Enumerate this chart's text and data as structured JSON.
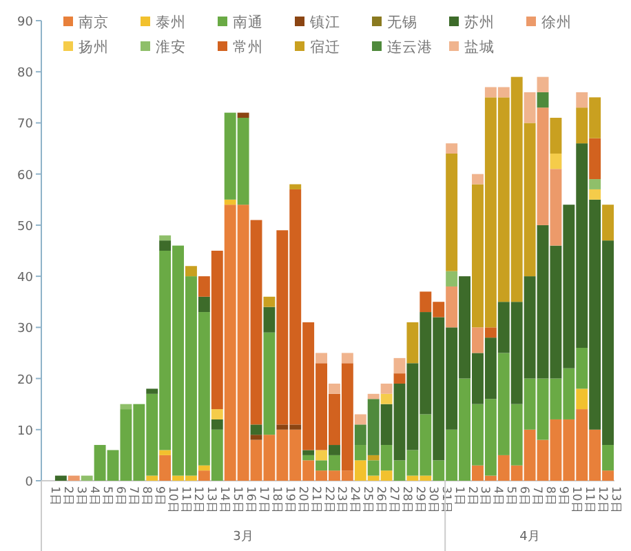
{
  "chart_data": {
    "type": "bar",
    "stacked": true,
    "legend": "top",
    "categories": [
      "1日",
      "2日",
      "3日",
      "4日",
      "5日",
      "6日",
      "7日",
      "8日",
      "9日",
      "10日",
      "11日",
      "12日",
      "13日",
      "14日",
      "15日",
      "16日",
      "17日",
      "18日",
      "19日",
      "20日",
      "21日",
      "22日",
      "23日",
      "24日",
      "25日",
      "26日",
      "27日",
      "28日",
      "29日",
      "30日",
      "31日",
      "1日",
      "2日",
      "3日",
      "4日",
      "5日",
      "6日",
      "7日",
      "8日",
      "9日",
      "10日",
      "11日",
      "12日",
      "13日"
    ],
    "annotations": [
      "3月",
      "4月"
    ],
    "ylim": [
      0,
      90
    ],
    "yticks": [
      0,
      10,
      20,
      30,
      40,
      50,
      60,
      70,
      80,
      90
    ],
    "series": [
      {
        "name": "南京",
        "color": "#e8803a",
        "values": [
          0,
          0,
          0,
          0,
          0,
          0,
          0,
          0,
          0,
          5,
          0,
          0,
          2,
          0,
          54,
          54,
          8,
          9,
          10,
          10,
          4,
          2,
          2,
          2,
          0,
          0,
          0,
          0,
          0,
          0,
          0,
          0,
          0,
          3,
          1,
          5,
          3,
          10,
          8,
          12,
          12,
          14,
          10,
          2
        ]
      },
      {
        "name": "泰州",
        "color": "#f2c12e",
        "values": [
          0,
          0,
          0,
          0,
          0,
          0,
          0,
          0,
          1,
          1,
          1,
          1,
          1,
          0,
          1,
          0,
          0,
          0,
          0,
          0,
          0,
          0,
          0,
          0,
          4,
          1,
          2,
          0,
          1,
          1,
          0,
          0,
          0,
          0,
          0,
          0,
          0,
          0,
          0,
          0,
          0,
          4,
          0,
          0
        ]
      },
      {
        "name": "南通",
        "color": "#6aaa45",
        "values": [
          0,
          0,
          0,
          0,
          7,
          6,
          14,
          15,
          16,
          39,
          45,
          39,
          30,
          10,
          17,
          17,
          0,
          20,
          0,
          0,
          1,
          2,
          3,
          0,
          3,
          3,
          5,
          4,
          5,
          12,
          4,
          10,
          20,
          12,
          15,
          20,
          12,
          10,
          12,
          8,
          10,
          8,
          0,
          5
        ]
      },
      {
        "name": "镇江",
        "color": "#8b4513",
        "values": [
          0,
          0,
          0,
          0,
          0,
          0,
          0,
          0,
          0,
          0,
          0,
          0,
          0,
          0,
          0,
          1,
          1,
          0,
          1,
          1,
          0,
          0,
          0,
          0,
          0,
          0,
          0,
          0,
          0,
          0,
          0,
          0,
          0,
          0,
          0,
          0,
          0,
          0,
          0,
          0,
          0,
          0,
          0,
          0
        ]
      },
      {
        "name": "无锡",
        "color": "#8a7a20",
        "values": [
          0,
          0,
          0,
          0,
          0,
          0,
          0,
          0,
          0,
          0,
          0,
          0,
          0,
          0,
          0,
          0,
          0,
          0,
          0,
          0,
          0,
          0,
          0,
          0,
          0,
          0,
          0,
          0,
          0,
          0,
          0,
          0,
          0,
          0,
          0,
          0,
          0,
          0,
          0,
          0,
          0,
          0,
          0,
          0
        ]
      },
      {
        "name": "苏州",
        "color": "#3d6b2a",
        "values": [
          0,
          1,
          0,
          0,
          0,
          0,
          0,
          0,
          1,
          2,
          0,
          0,
          3,
          2,
          0,
          0,
          2,
          5,
          0,
          0,
          1,
          0,
          2,
          0,
          0,
          0,
          8,
          15,
          17,
          20,
          28,
          20,
          20,
          10,
          12,
          10,
          20,
          20,
          30,
          26,
          32,
          40,
          45,
          40
        ]
      },
      {
        "name": "徐州",
        "color": "#ec9a6a",
        "values": [
          0,
          0,
          1,
          0,
          0,
          0,
          0,
          0,
          0,
          0,
          0,
          0,
          0,
          0,
          0,
          0,
          0,
          0,
          0,
          0,
          0,
          0,
          0,
          0,
          0,
          0,
          0,
          0,
          0,
          0,
          0,
          8,
          0,
          5,
          0,
          0,
          0,
          0,
          23,
          15,
          0,
          0,
          0,
          0
        ]
      },
      {
        "name": "扬州",
        "color": "#f5cc4a",
        "values": [
          0,
          0,
          0,
          0,
          0,
          0,
          0,
          0,
          0,
          0,
          0,
          0,
          0,
          2,
          0,
          0,
          0,
          0,
          0,
          0,
          0,
          2,
          0,
          0,
          0,
          0,
          2,
          0,
          0,
          0,
          0,
          0,
          0,
          0,
          0,
          0,
          0,
          0,
          0,
          3,
          0,
          0,
          2,
          0
        ]
      },
      {
        "name": "淮安",
        "color": "#8fbf6a",
        "values": [
          0,
          0,
          0,
          1,
          0,
          0,
          1,
          0,
          0,
          1,
          0,
          0,
          0,
          0,
          0,
          0,
          0,
          0,
          0,
          0,
          0,
          0,
          0,
          0,
          0,
          0,
          0,
          0,
          0,
          0,
          0,
          3,
          0,
          0,
          0,
          0,
          0,
          0,
          0,
          0,
          0,
          0,
          2,
          0
        ]
      },
      {
        "name": "常州",
        "color": "#d2621f",
        "values": [
          0,
          0,
          0,
          0,
          0,
          0,
          0,
          0,
          0,
          0,
          0,
          0,
          4,
          31,
          0,
          0,
          40,
          0,
          38,
          46,
          25,
          17,
          10,
          21,
          0,
          0,
          0,
          2,
          0,
          4,
          3,
          0,
          0,
          0,
          2,
          0,
          0,
          0,
          0,
          0,
          0,
          0,
          8,
          0
        ]
      },
      {
        "name": "宿迁",
        "color": "#c9a020",
        "values": [
          0,
          0,
          0,
          0,
          0,
          0,
          0,
          0,
          0,
          0,
          0,
          2,
          0,
          0,
          0,
          0,
          0,
          2,
          0,
          1,
          0,
          0,
          0,
          0,
          0,
          1,
          0,
          0,
          8,
          0,
          0,
          23,
          0,
          28,
          45,
          40,
          44,
          30,
          0,
          7,
          0,
          7,
          8,
          7
        ]
      },
      {
        "name": "连云港",
        "color": "#4f8a3c",
        "values": [
          0,
          0,
          0,
          0,
          0,
          0,
          0,
          0,
          0,
          0,
          0,
          0,
          0,
          0,
          0,
          0,
          0,
          0,
          0,
          0,
          0,
          0,
          0,
          0,
          4,
          11,
          0,
          0,
          0,
          0,
          0,
          0,
          0,
          0,
          0,
          0,
          0,
          0,
          3,
          0,
          0,
          0,
          0,
          0
        ]
      },
      {
        "name": "盐城",
        "color": "#f0b48e",
        "values": [
          0,
          0,
          0,
          0,
          0,
          0,
          0,
          0,
          0,
          0,
          0,
          0,
          0,
          0,
          0,
          0,
          0,
          0,
          0,
          0,
          0,
          2,
          2,
          2,
          2,
          1,
          2,
          3,
          0,
          0,
          0,
          2,
          0,
          2,
          2,
          2,
          0,
          6,
          3,
          0,
          0,
          3,
          0,
          0
        ]
      }
    ]
  }
}
